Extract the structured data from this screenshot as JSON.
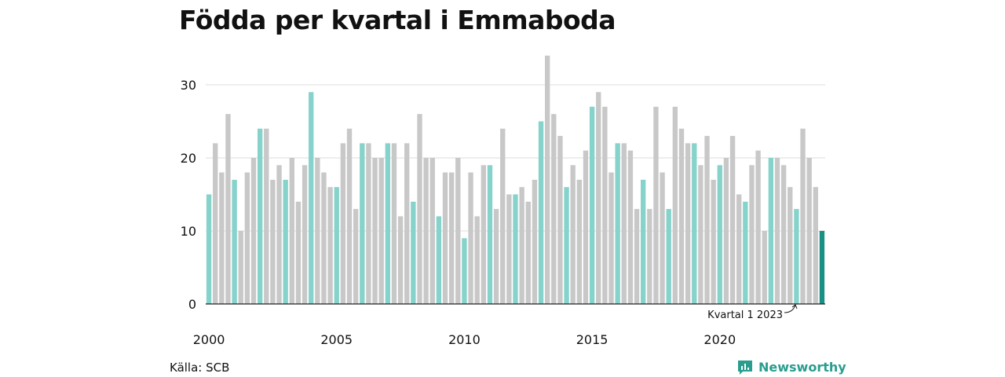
{
  "chart_data": {
    "type": "bar",
    "title": "Födda per kvartal i Emmaboda",
    "xlabel": "",
    "ylabel": "",
    "ylim": [
      0,
      35
    ],
    "yticks": [
      0,
      10,
      20,
      30
    ],
    "xtick_labels": [
      "2000",
      "2005",
      "2010",
      "2015",
      "2020"
    ],
    "grid": true,
    "start": "2000 Q1",
    "end": "2023 Q1",
    "values": [
      15,
      22,
      18,
      26,
      17,
      10,
      18,
      20,
      24,
      24,
      17,
      19,
      17,
      20,
      14,
      19,
      29,
      20,
      18,
      16,
      16,
      22,
      24,
      13,
      22,
      22,
      20,
      20,
      22,
      22,
      12,
      22,
      14,
      26,
      20,
      20,
      12,
      18,
      18,
      20,
      9,
      18,
      12,
      19,
      19,
      13,
      24,
      15,
      15,
      16,
      14,
      17,
      25,
      34,
      26,
      23,
      16,
      19,
      17,
      21,
      27,
      29,
      27,
      18,
      22,
      22,
      21,
      13,
      17,
      13,
      27,
      18,
      13,
      27,
      24,
      22,
      22,
      19,
      23,
      17,
      19,
      20,
      23,
      15,
      14,
      19,
      21,
      10,
      20,
      20,
      19,
      16,
      13,
      24,
      20,
      16,
      10
    ],
    "highlight": "first quarter of each year",
    "annotation": "Kvartal 1 2023"
  },
  "source": "Källa: SCB",
  "brand": "Newsworthy",
  "colors": {
    "bar": "#c8c8c8",
    "q1": "#86d3cb",
    "latest": "#1a8f84",
    "grid": "#dddddd",
    "brand": "#2a9d8f"
  }
}
